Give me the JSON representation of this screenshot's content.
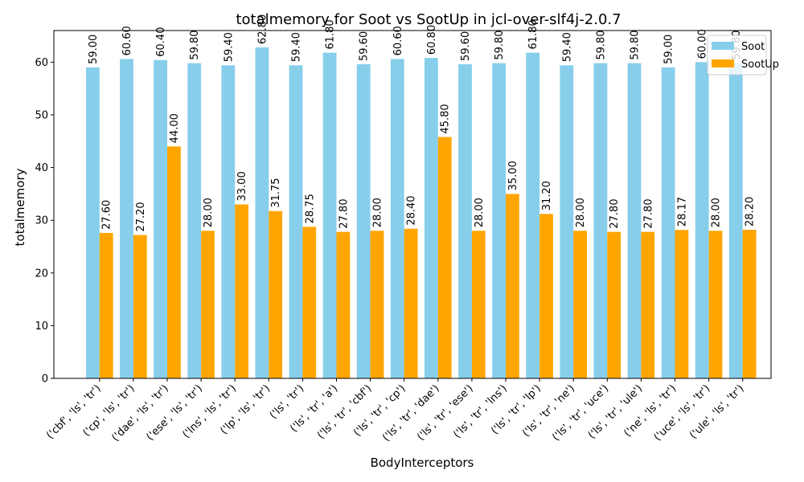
{
  "chart_data": {
    "type": "bar",
    "title": "totalmemory for Soot vs SootUp in jcl-over-slf4j-2.0.7",
    "xlabel": "BodyInterceptors",
    "ylabel": "totalmemory",
    "ylim": [
      0,
      66
    ],
    "yticks": [
      0,
      10,
      20,
      30,
      40,
      50,
      60
    ],
    "grid": false,
    "legend_position": "top-right",
    "categories": [
      "('cbf', 'ls', 'tr')",
      "('cp', 'ls', 'tr')",
      "('dae', 'ls', 'tr')",
      "('ese', 'ls', 'tr')",
      "('lns', 'ls', 'tr')",
      "('lp', 'ls', 'tr')",
      "('ls', 'tr')",
      "('ls', 'tr', 'a')",
      "('ls', 'tr', 'cbf')",
      "('ls', 'tr', 'cp')",
      "('ls', 'tr', 'dae')",
      "('ls', 'tr', 'ese')",
      "('ls', 'tr', 'lns')",
      "('ls', 'tr', 'lp')",
      "('ls', 'tr', 'ne')",
      "('ls', 'tr', 'uce')",
      "('ls', 'tr', 'ule')",
      "('ne', 'ls', 'tr')",
      "('uce', 'ls', 'tr')",
      "('ule', 'ls', 'tr')"
    ],
    "series": [
      {
        "name": "Soot",
        "color": "#87ceeb",
        "values": [
          59.0,
          60.6,
          60.4,
          59.8,
          59.4,
          62.8,
          59.4,
          61.8,
          59.6,
          60.6,
          60.8,
          59.6,
          59.8,
          61.8,
          59.4,
          59.8,
          59.8,
          59.0,
          60.0,
          59.8
        ],
        "labels": [
          "59.00",
          "60.60",
          "60.40",
          "59.80",
          "59.40",
          "62.80",
          "59.40",
          "61.80",
          "59.60",
          "60.60",
          "60.80",
          "59.60",
          "59.80",
          "61.80",
          "59.40",
          "59.80",
          "59.80",
          "59.00",
          "60.00",
          "59.80"
        ]
      },
      {
        "name": "SootUp",
        "color": "#ffa500",
        "values": [
          27.6,
          27.2,
          44.0,
          28.0,
          33.0,
          31.75,
          28.75,
          27.8,
          28.0,
          28.4,
          45.8,
          28.0,
          35.0,
          31.2,
          28.0,
          27.8,
          27.8,
          28.17,
          28.0,
          28.2
        ],
        "labels": [
          "27.60",
          "27.20",
          "44.00",
          "28.00",
          "33.00",
          "31.75",
          "28.75",
          "27.80",
          "28.00",
          "28.40",
          "45.80",
          "28.00",
          "35.00",
          "31.20",
          "28.00",
          "27.80",
          "27.80",
          "28.17",
          "28.00",
          "28.20"
        ]
      }
    ]
  }
}
